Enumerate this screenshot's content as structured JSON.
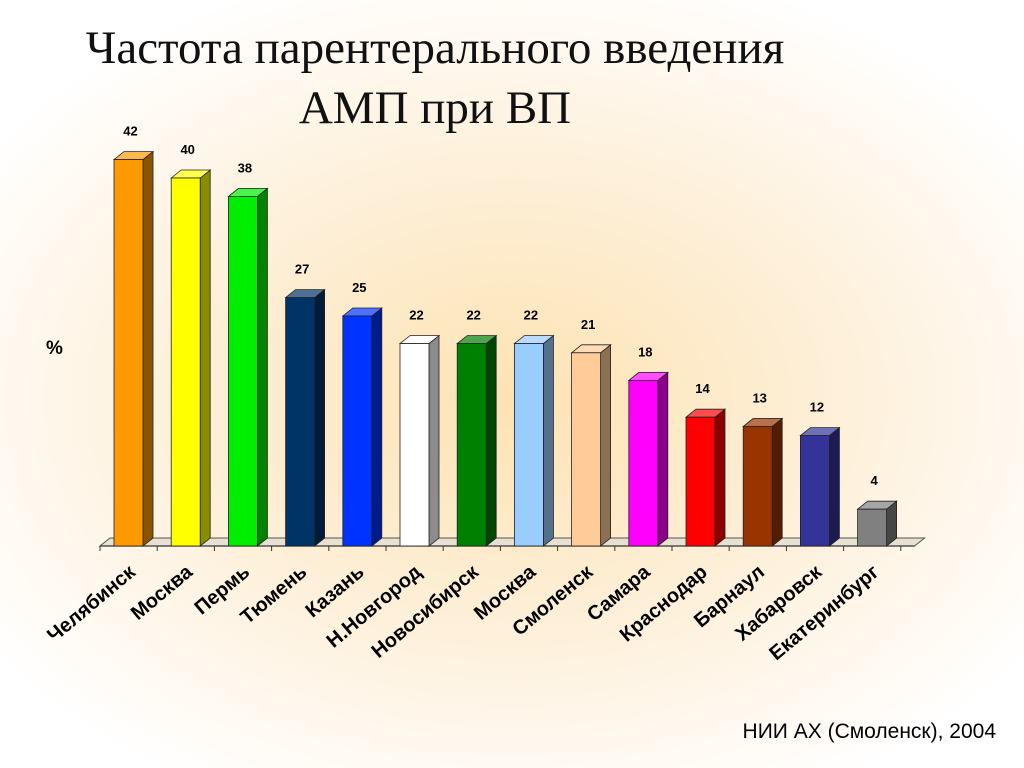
{
  "slide": {
    "title_line1": "Частота парентерального введения",
    "title_line2": "АМП при ВП",
    "source": "НИИ АХ (Смоленск), 2004"
  },
  "chart_data": {
    "type": "bar",
    "title": "",
    "xlabel": "",
    "ylabel": "%",
    "ylim": [
      0,
      42
    ],
    "grid": false,
    "categories": [
      "Челябинск",
      "Москва",
      "Пермь",
      "Тюмень",
      "Казань",
      "Н.Новгород",
      "Новосибирск",
      "Москва",
      "Смоленск",
      "Самара",
      "Краснодар",
      "Барнаул",
      "Хабаровск",
      "Екатеринбург"
    ],
    "values": [
      42,
      40,
      38,
      27,
      25,
      22,
      22,
      22,
      21,
      18,
      14,
      13,
      12,
      4
    ],
    "colors": [
      "#ff9900",
      "#ffff00",
      "#00ee00",
      "#003366",
      "#0033ff",
      "#ffffff",
      "#008000",
      "#99ccff",
      "#ffcc99",
      "#ff00ff",
      "#ff0000",
      "#993300",
      "#333399",
      "#808080"
    ]
  }
}
